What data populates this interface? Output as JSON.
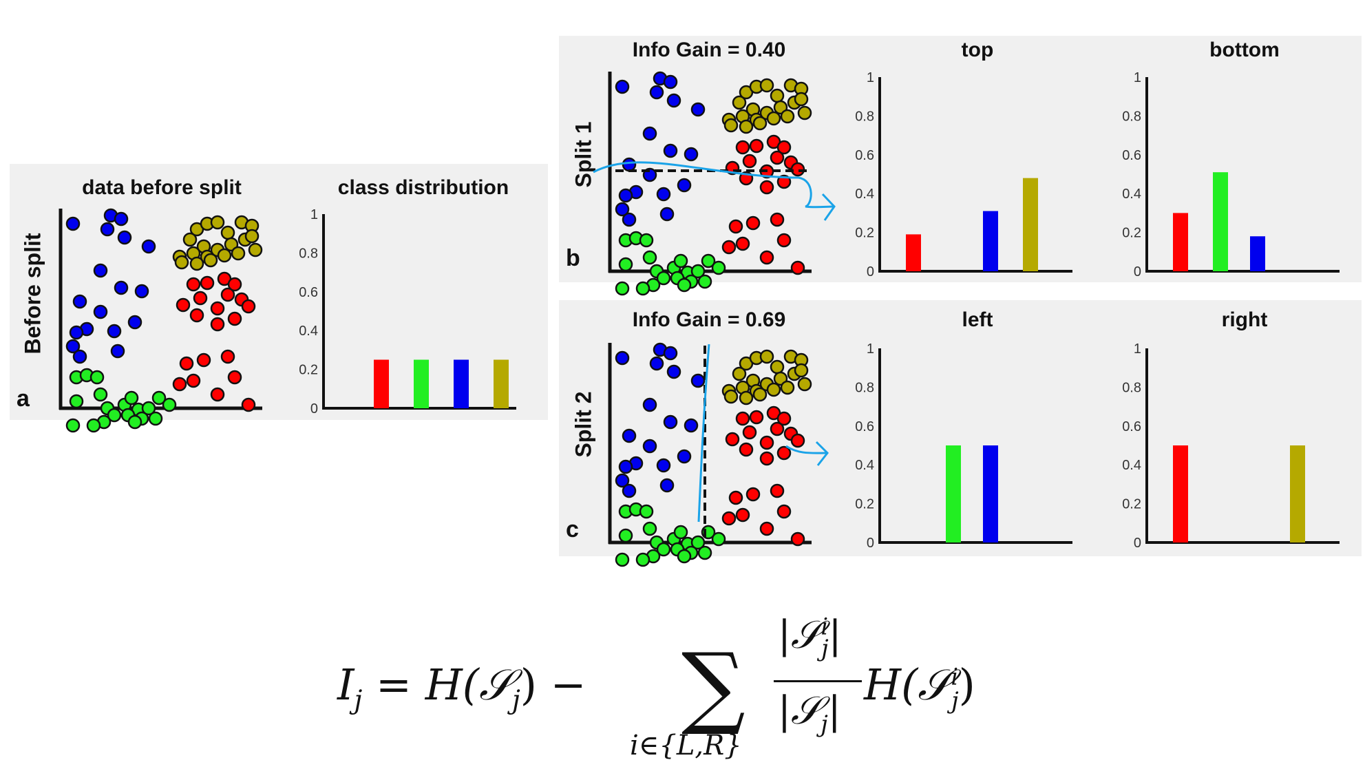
{
  "colors": {
    "red": "#ff0000",
    "green": "#22ee22",
    "blue": "#0000ee",
    "olive": "#b5a900",
    "annotation": "#1aa3e8"
  },
  "panel_a": {
    "label": "Before split",
    "letter": "a",
    "scatter_title": "data before split",
    "hist_title": "class distribution",
    "hist_ticks": [
      "0",
      "0.2",
      "0.4",
      "0.6",
      "0.8",
      "1"
    ]
  },
  "panel_b": {
    "label": "Split 1",
    "letter": "b",
    "scatter_title": "Info Gain = 0.40",
    "left_title": "top",
    "right_title": "bottom",
    "ticks": [
      "0",
      "0.2",
      "0.4",
      "0.6",
      "0.8",
      "1"
    ]
  },
  "panel_c": {
    "label": "Split 2",
    "letter": "c",
    "scatter_title": "Info Gain = 0.69",
    "left_title": "left",
    "right_title": "right",
    "ticks": [
      "0",
      "0.2",
      "0.4",
      "0.6",
      "0.8",
      "1"
    ]
  },
  "chart_data": [
    {
      "type": "bar",
      "title": "class distribution",
      "categories": [
        "red",
        "green",
        "blue",
        "olive"
      ],
      "values": [
        0.25,
        0.25,
        0.25,
        0.25
      ],
      "ylim": [
        0,
        1
      ]
    },
    {
      "type": "bar",
      "title": "top",
      "categories": [
        "red",
        "green",
        "blue",
        "olive"
      ],
      "values": [
        0.19,
        0,
        0.31,
        0.48
      ],
      "ylim": [
        0,
        1
      ]
    },
    {
      "type": "bar",
      "title": "bottom",
      "categories": [
        "red",
        "green",
        "blue",
        "olive"
      ],
      "values": [
        0.3,
        0.51,
        0.18,
        0
      ],
      "ylim": [
        0,
        1
      ]
    },
    {
      "type": "bar",
      "title": "left",
      "categories": [
        "red",
        "green",
        "blue",
        "olive"
      ],
      "values": [
        0,
        0.5,
        0.5,
        0
      ],
      "ylim": [
        0,
        1
      ]
    },
    {
      "type": "bar",
      "title": "right",
      "categories": [
        "red",
        "green",
        "blue",
        "olive"
      ],
      "values": [
        0.5,
        0,
        0,
        0.5
      ],
      "ylim": [
        0,
        1
      ]
    }
  ],
  "formula": {
    "lhs": "I",
    "lhs_sub": "j",
    "eq": "=",
    "h_term": "H(𝒮",
    "h_sub": "j",
    "close": ")",
    "minus": "−",
    "sum": "∑",
    "sum_index": "i∈{L,R}",
    "frac_num": "|𝒮",
    "frac_num_sup": "i",
    "frac_num_sub": "j",
    "frac_den": "|𝒮",
    "frac_den_sub": "j",
    "bar": "|",
    "rest": "H(𝒮",
    "rest_sup": "i",
    "rest_sub": "j"
  }
}
